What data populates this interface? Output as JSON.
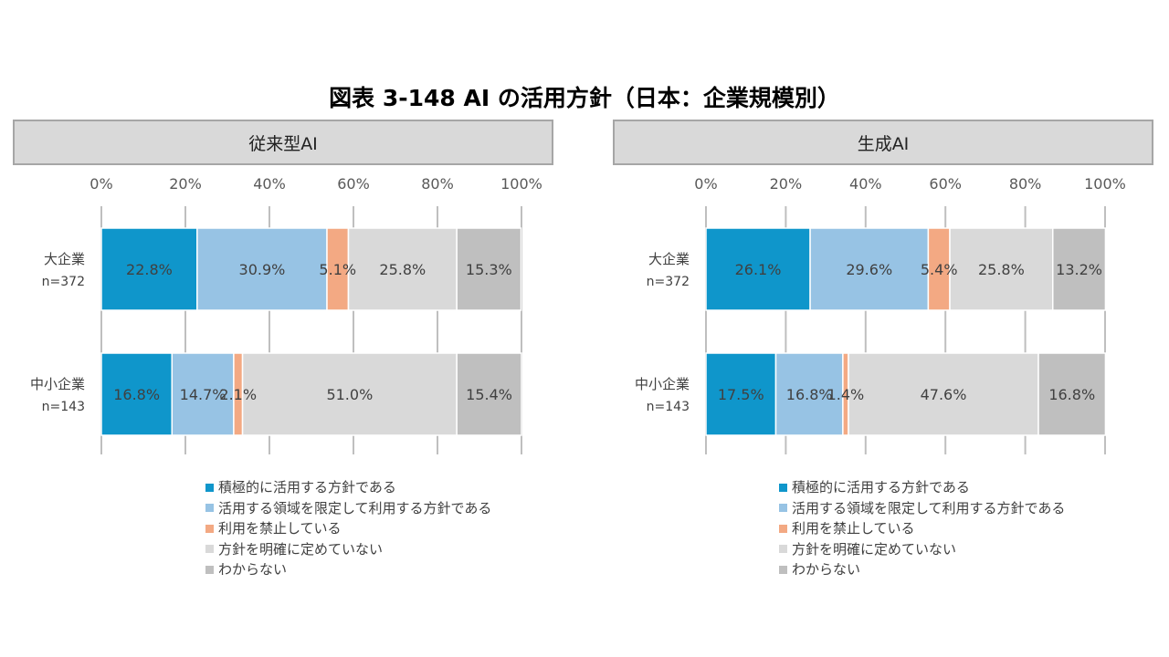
{
  "title": "図表 3-148 AI の活用方針（日本：企業規模別）",
  "colors": [
    "#0f96cb",
    "#97c3e4",
    "#f3a983",
    "#d9d9d9",
    "#bfbfbf"
  ],
  "chart_data": [
    {
      "type": "bar",
      "orientation": "horizontal",
      "stacked": true,
      "panel_title": "従来型AI",
      "categories": [
        "大企業\nn=372",
        "中小企業\nn=143"
      ],
      "xlim": [
        0,
        100
      ],
      "ticks": [
        "0%",
        "20%",
        "40%",
        "60%",
        "80%",
        "100%"
      ],
      "grid": true,
      "legend": "bottom",
      "series": [
        {
          "name": "積極的に活用する方針である",
          "values": [
            22.8,
            16.8
          ]
        },
        {
          "name": "活用する領域を限定して利用する方針である",
          "values": [
            30.9,
            14.7
          ]
        },
        {
          "name": "利用を禁止している",
          "values": [
            5.1,
            2.1
          ]
        },
        {
          "name": "方針を明確に定めていない",
          "values": [
            25.8,
            51.0
          ]
        },
        {
          "name": "わからない",
          "values": [
            15.3,
            15.4
          ]
        }
      ]
    },
    {
      "type": "bar",
      "orientation": "horizontal",
      "stacked": true,
      "panel_title": "生成AI",
      "categories": [
        "大企業\nn=372",
        "中小企業\nn=143"
      ],
      "xlim": [
        0,
        100
      ],
      "ticks": [
        "0%",
        "20%",
        "40%",
        "60%",
        "80%",
        "100%"
      ],
      "grid": true,
      "legend": "bottom",
      "series": [
        {
          "name": "積極的に活用する方針である",
          "values": [
            26.1,
            17.5
          ]
        },
        {
          "name": "活用する領域を限定して利用する方針である",
          "values": [
            29.6,
            16.8
          ]
        },
        {
          "name": "利用を禁止している",
          "values": [
            5.4,
            1.4
          ]
        },
        {
          "name": "方針を明確に定めていない",
          "values": [
            25.8,
            47.6
          ]
        },
        {
          "name": "わからない",
          "values": [
            13.2,
            16.8
          ]
        }
      ]
    }
  ]
}
